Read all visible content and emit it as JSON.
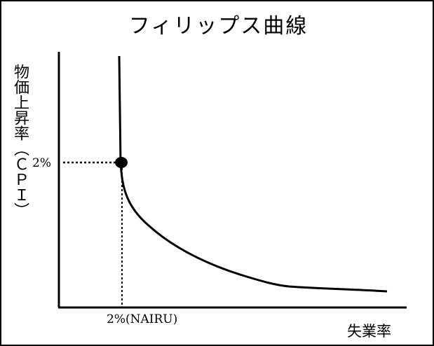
{
  "title": "フィリップス曲線",
  "y_axis_label": "物価上昇率（ＣＰＩ）",
  "x_axis_label": "失業率",
  "y_marker_label": "2%",
  "x_marker_label": "2%(NAIRU)",
  "colors": {
    "line": "#000000",
    "background": "#ffffff"
  }
}
